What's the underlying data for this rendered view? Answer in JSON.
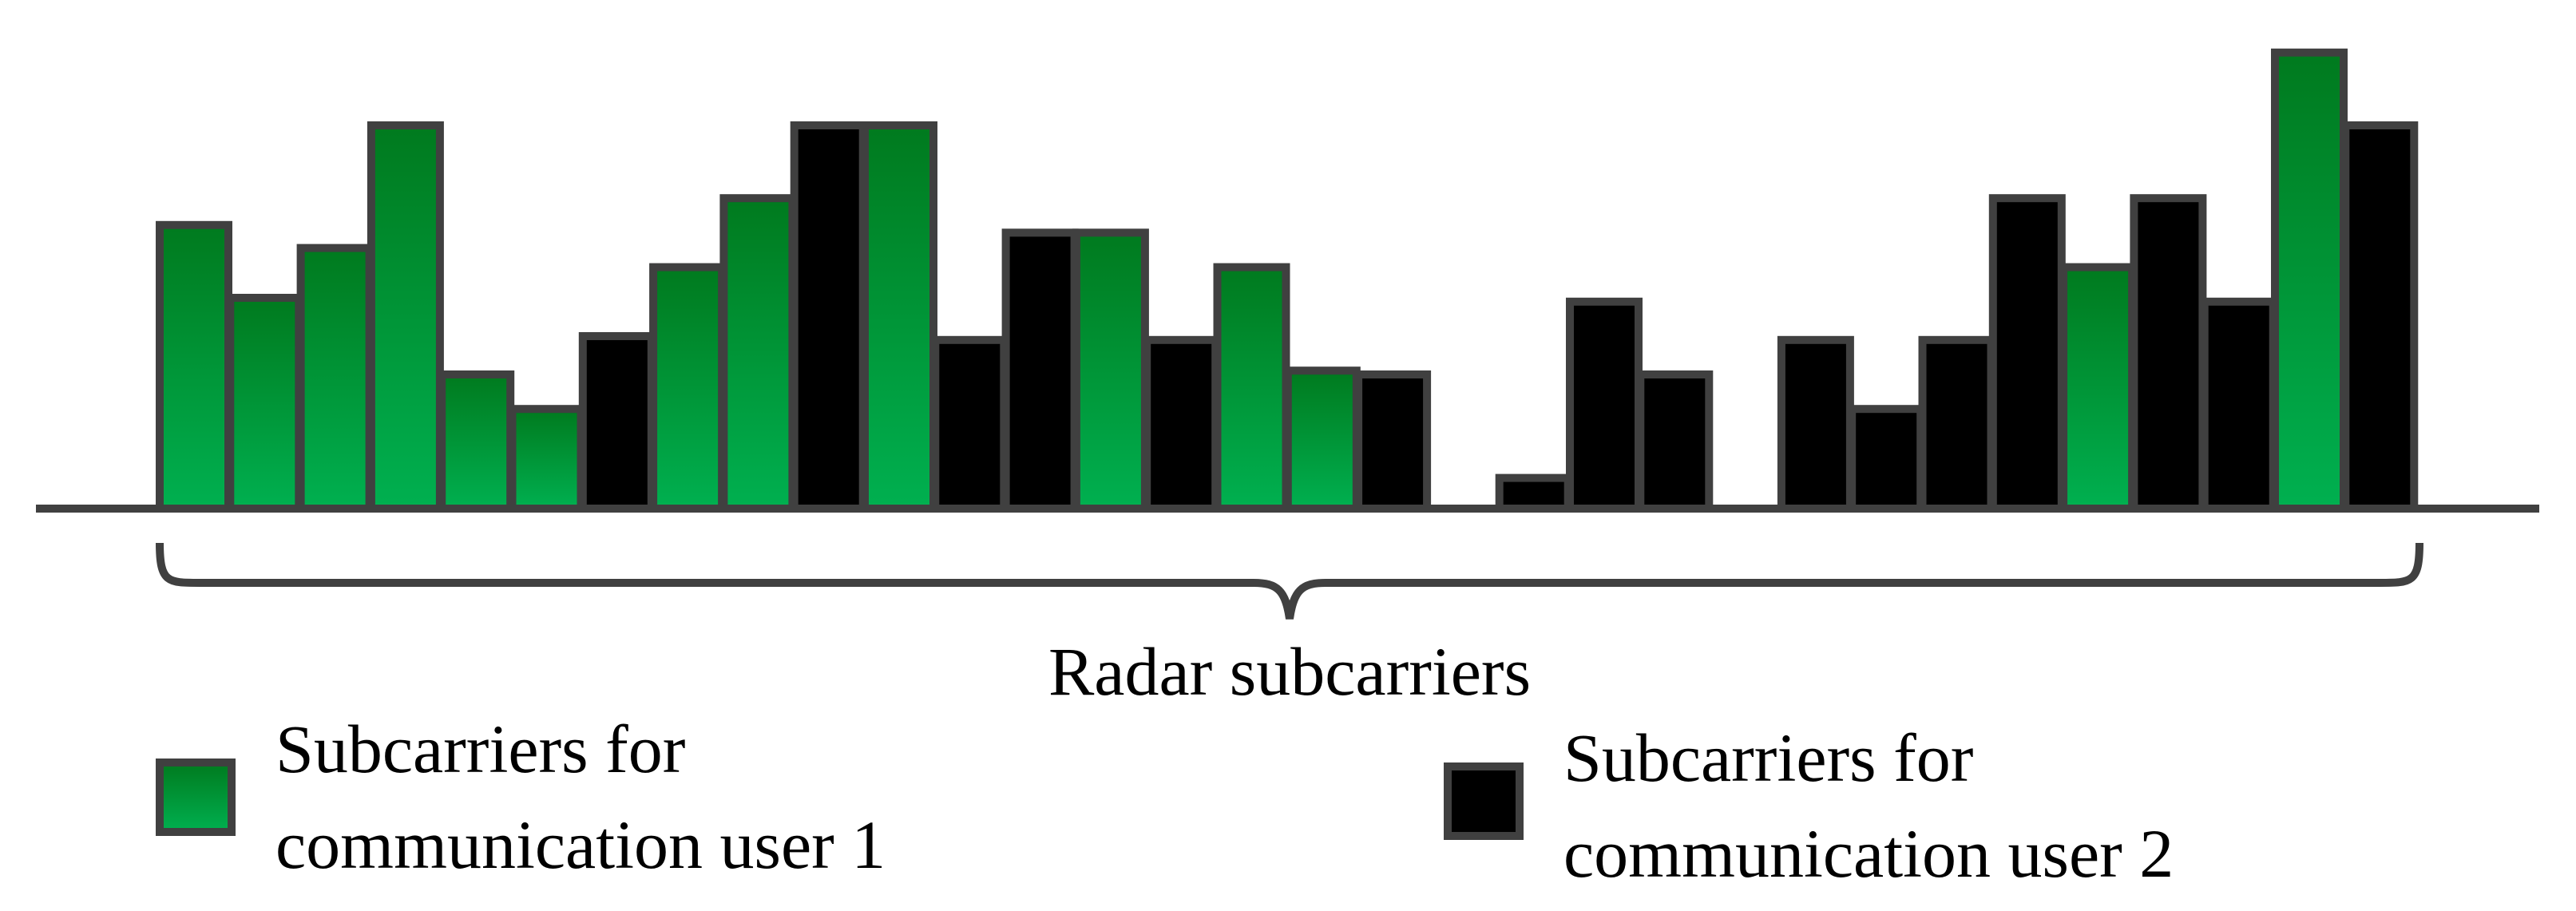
{
  "diagram": {
    "brace_label": "Radar subcarriers",
    "colors": {
      "user1_top": "#007a1e",
      "user1_bottom": "#00b050",
      "user2": "#000000",
      "outline": "#404040",
      "axis": "#404040"
    },
    "subcarriers": [
      {
        "user": 1,
        "level": 0.74
      },
      {
        "user": 1,
        "level": 0.55
      },
      {
        "user": 1,
        "level": 0.68
      },
      {
        "user": 1,
        "level": 1.0
      },
      {
        "user": 1,
        "level": 0.35
      },
      {
        "user": 1,
        "level": 0.26
      },
      {
        "user": 2,
        "level": 0.45
      },
      {
        "user": 1,
        "level": 0.63
      },
      {
        "user": 1,
        "level": 0.81
      },
      {
        "user": 2,
        "level": 1.0
      },
      {
        "user": 1,
        "level": 1.0
      },
      {
        "user": 2,
        "level": 0.44
      },
      {
        "user": 2,
        "level": 0.72
      },
      {
        "user": 1,
        "level": 0.72
      },
      {
        "user": 2,
        "level": 0.44
      },
      {
        "user": 1,
        "level": 0.63
      },
      {
        "user": 1,
        "level": 0.36
      },
      {
        "user": 2,
        "level": 0.35
      },
      {
        "user": 0,
        "level": 0
      },
      {
        "user": 2,
        "level": 0.08
      },
      {
        "user": 2,
        "level": 0.54
      },
      {
        "user": 2,
        "level": 0.35
      },
      {
        "user": 0,
        "level": 0
      },
      {
        "user": 2,
        "level": 0.44
      },
      {
        "user": 2,
        "level": 0.26
      },
      {
        "user": 2,
        "level": 0.44
      },
      {
        "user": 2,
        "level": 0.81
      },
      {
        "user": 1,
        "level": 0.63
      },
      {
        "user": 2,
        "level": 0.81
      },
      {
        "user": 2,
        "level": 0.54
      },
      {
        "user": 1,
        "level": 1.19
      },
      {
        "user": 2,
        "level": 1.0
      }
    ]
  },
  "legend": {
    "user1": {
      "line1": "Subcarriers for",
      "line2": "communication user 1"
    },
    "user2": {
      "line1": "Subcarriers for",
      "line2": "communication user 2"
    }
  }
}
